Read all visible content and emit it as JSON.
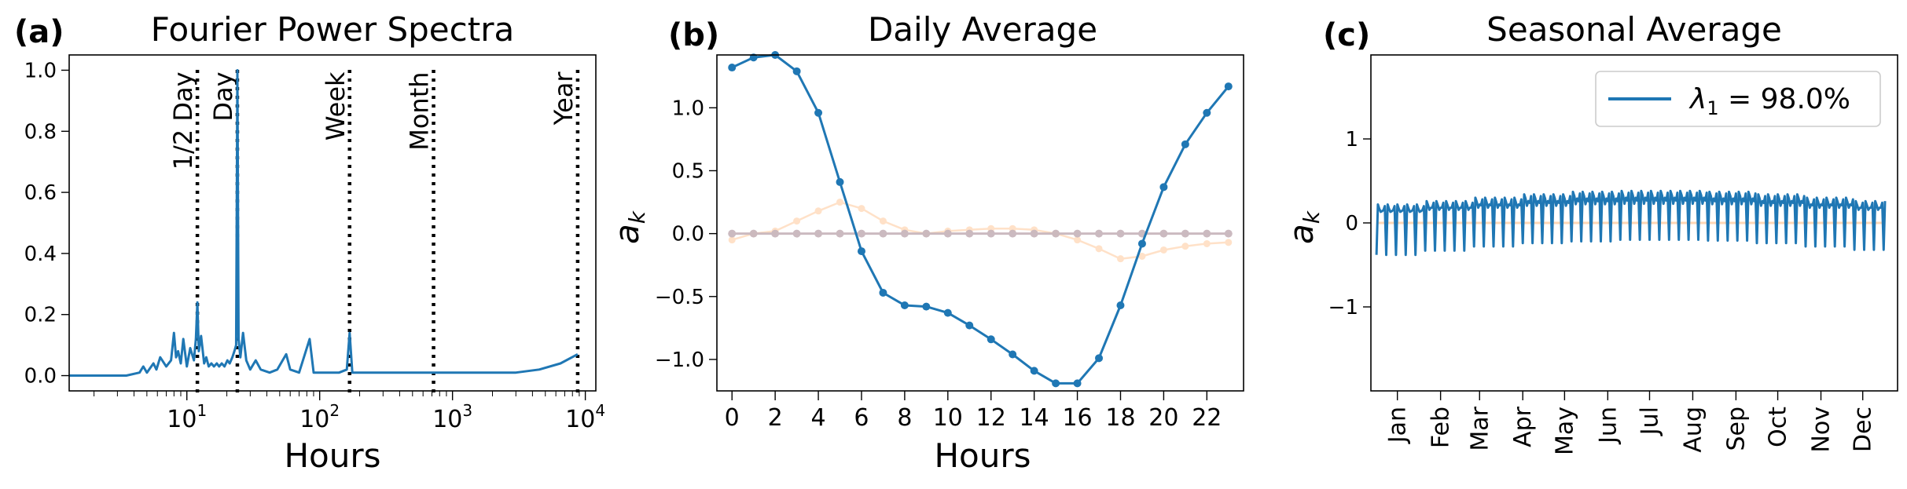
{
  "colors": {
    "main": "#1f77b4",
    "faint1": "#ffbe86",
    "faint2": "#c9b7bd"
  },
  "chart_data": [
    {
      "type": "line",
      "panel_label": "(a)",
      "title": "Fourier Power Spectra",
      "xlabel": "Hours",
      "ylabel": "",
      "xscale": "log",
      "xlim": [
        1.3,
        12000
      ],
      "ylim": [
        -0.05,
        1.05
      ],
      "xticks": [
        {
          "value": 10,
          "base": "10",
          "exp": "1"
        },
        {
          "value": 100,
          "base": "10",
          "exp": "2"
        },
        {
          "value": 1000,
          "base": "10",
          "exp": "3"
        },
        {
          "value": 10000,
          "base": "10",
          "exp": "4"
        }
      ],
      "yticks": [
        {
          "value": 0.0,
          "label": "0.0"
        },
        {
          "value": 0.2,
          "label": "0.2"
        },
        {
          "value": 0.4,
          "label": "0.4"
        },
        {
          "value": 0.6,
          "label": "0.6"
        },
        {
          "value": 0.8,
          "label": "0.8"
        },
        {
          "value": 1.0,
          "label": "1.0"
        }
      ],
      "reference_lines": [
        {
          "x": 12,
          "label": "1/2 Day"
        },
        {
          "x": 24,
          "label": "Day"
        },
        {
          "x": 168,
          "label": "Week"
        },
        {
          "x": 720,
          "label": "Month"
        },
        {
          "x": 8760,
          "label": "Year"
        }
      ],
      "series": [
        {
          "x": [
            1.3,
            3.5,
            4.4,
            4.7,
            5.0,
            5.6,
            5.9,
            6.3,
            7.0,
            7.6,
            8.0,
            8.3,
            8.6,
            9.0,
            9.4,
            10.0,
            10.6,
            11.3,
            11.7,
            12.0,
            12.3,
            12.8,
            13.5,
            14.0,
            14.6,
            15.3,
            16.0,
            16.8,
            17.5,
            18.3,
            19.2,
            20.2,
            21.0,
            22.0,
            22.8,
            23.5,
            24.0,
            24.5,
            25.3,
            26.5,
            28.0,
            30.0,
            33.0,
            36.0,
            42.0,
            48.0,
            56.0,
            60.0,
            70.0,
            84.0,
            90.0,
            110.0,
            140.0,
            160.0,
            168.0,
            176.0,
            220.0,
            300.0,
            420.0,
            600.0,
            720.0,
            900.0,
            1200.0,
            2000.0,
            3000.0,
            4500.0,
            6500.0,
            8760.0
          ],
          "y": [
            0.0,
            0.0,
            0.01,
            0.03,
            0.01,
            0.04,
            0.02,
            0.06,
            0.03,
            0.05,
            0.14,
            0.06,
            0.08,
            0.04,
            0.12,
            0.03,
            0.09,
            0.05,
            0.12,
            0.24,
            0.08,
            0.13,
            0.04,
            0.06,
            0.03,
            0.04,
            0.03,
            0.04,
            0.03,
            0.04,
            0.03,
            0.05,
            0.04,
            0.06,
            0.08,
            0.1,
            1.0,
            0.12,
            0.06,
            0.14,
            0.05,
            0.02,
            0.05,
            0.02,
            0.01,
            0.02,
            0.07,
            0.02,
            0.01,
            0.12,
            0.01,
            0.01,
            0.01,
            0.02,
            0.14,
            0.01,
            0.01,
            0.01,
            0.01,
            0.01,
            0.01,
            0.01,
            0.01,
            0.01,
            0.01,
            0.02,
            0.04,
            0.07
          ]
        }
      ]
    },
    {
      "type": "line",
      "panel_label": "(b)",
      "title": "Daily Average",
      "xlabel": "Hours",
      "ylabel": "a",
      "ylabel_subscript": "k",
      "xlim": [
        -0.7,
        23.7
      ],
      "ylim": [
        -1.25,
        1.42
      ],
      "xticks": [
        0,
        2,
        4,
        6,
        8,
        10,
        12,
        14,
        16,
        18,
        20,
        22
      ],
      "yticks": [
        {
          "value": 1.0,
          "label": "1.0"
        },
        {
          "value": 0.5,
          "label": "0.5"
        },
        {
          "value": 0.0,
          "label": "0.0"
        },
        {
          "value": -0.5,
          "label": "−0.5"
        },
        {
          "value": -1.0,
          "label": "−1.0"
        }
      ],
      "series": [
        {
          "style": "main",
          "x": [
            0,
            1,
            2,
            3,
            4,
            5,
            6,
            7,
            8,
            9,
            10,
            11,
            12,
            13,
            14,
            15,
            16,
            17,
            18,
            19,
            20,
            21,
            22,
            23
          ],
          "y": [
            1.32,
            1.4,
            1.42,
            1.29,
            0.96,
            0.41,
            -0.14,
            -0.47,
            -0.57,
            -0.58,
            -0.63,
            -0.73,
            -0.84,
            -0.96,
            -1.09,
            -1.19,
            -1.19,
            -0.99,
            -0.57,
            -0.08,
            0.37,
            0.71,
            0.96,
            1.17
          ]
        },
        {
          "style": "faint1",
          "x": [
            0,
            1,
            2,
            3,
            4,
            5,
            6,
            7,
            8,
            9,
            10,
            11,
            12,
            13,
            14,
            15,
            16,
            17,
            18,
            19,
            20,
            21,
            22,
            23
          ],
          "y": [
            -0.05,
            0.0,
            0.02,
            0.1,
            0.18,
            0.25,
            0.2,
            0.1,
            0.03,
            0.0,
            0.02,
            0.03,
            0.04,
            0.04,
            0.03,
            0.0,
            -0.05,
            -0.12,
            -0.2,
            -0.18,
            -0.13,
            -0.1,
            -0.08,
            -0.07
          ]
        },
        {
          "style": "faint2",
          "x": [
            0,
            1,
            2,
            3,
            4,
            5,
            6,
            7,
            8,
            9,
            10,
            11,
            12,
            13,
            14,
            15,
            16,
            17,
            18,
            19,
            20,
            21,
            22,
            23
          ],
          "y": [
            0,
            0,
            0,
            0,
            0,
            0,
            0,
            0,
            0,
            0,
            0,
            0,
            0,
            0,
            0,
            0,
            0,
            0,
            0,
            0,
            0,
            0,
            0,
            0
          ]
        }
      ]
    },
    {
      "type": "line",
      "panel_label": "(c)",
      "title": "Seasonal Average",
      "xlabel": "",
      "ylabel": "a",
      "ylabel_subscript": "k",
      "legend_position": "top-right",
      "legend_entries": [
        {
          "symbol": "λ",
          "subscript": "1",
          "text": " = 98.0%"
        }
      ],
      "xlim": [
        -4,
        374
      ],
      "ylim": [
        -2.0,
        2.0
      ],
      "yticks": [
        {
          "value": 1,
          "label": "1"
        },
        {
          "value": 0,
          "label": "0"
        },
        {
          "value": -1,
          "label": "−1"
        }
      ],
      "xticks": [
        {
          "value": 15,
          "label": "Jan"
        },
        {
          "value": 46,
          "label": "Feb"
        },
        {
          "value": 74,
          "label": "Mar"
        },
        {
          "value": 105,
          "label": "Apr"
        },
        {
          "value": 135,
          "label": "May"
        },
        {
          "value": 166,
          "label": "Jun"
        },
        {
          "value": 196,
          "label": "Jul"
        },
        {
          "value": 227,
          "label": "Aug"
        },
        {
          "value": 258,
          "label": "Sep"
        },
        {
          "value": 288,
          "label": "Oct"
        },
        {
          "value": 319,
          "label": "Nov"
        },
        {
          "value": 349,
          "label": "Dec"
        }
      ],
      "series": [
        {
          "name": "λ1 = 98.0%",
          "style": "main",
          "x_start": 0,
          "x_end": 365,
          "weekly_cycle_days": 7,
          "weekday_peak": [
            0.22,
            0.26,
            0.3,
            0.34,
            0.37,
            0.38,
            0.38,
            0.37,
            0.34,
            0.3,
            0.26
          ],
          "weekend_dip": [
            -0.38,
            -0.33,
            -0.28,
            -0.24,
            -0.22,
            -0.2,
            -0.2,
            -0.21,
            -0.24,
            -0.28,
            -0.32
          ]
        },
        {
          "style": "faint1",
          "flat_value": 0.0
        }
      ]
    }
  ]
}
